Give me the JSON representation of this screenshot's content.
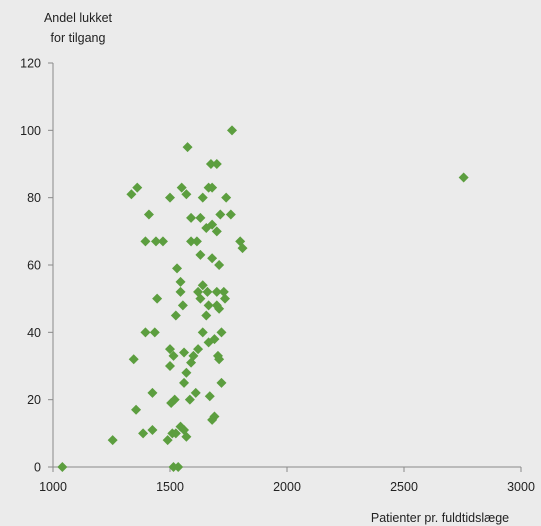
{
  "chart_data": {
    "type": "scatter",
    "ylabel": "Andel lukket\nfor tilgang",
    "xlabel": "Patienter pr. fuldtidslæge",
    "xlim": [
      1000,
      3000
    ],
    "ylim": [
      0,
      120
    ],
    "xticks": [
      1000,
      1500,
      2000,
      2500,
      3000
    ],
    "yticks": [
      0,
      20,
      40,
      60,
      80,
      100,
      120
    ],
    "grid": false,
    "marker": "diamond",
    "marker_color": "#5c9e3f",
    "points": [
      [
        1040,
        0
      ],
      [
        1515,
        0
      ],
      [
        1535,
        0
      ],
      [
        1255,
        8
      ],
      [
        1490,
        8
      ],
      [
        1385,
        10
      ],
      [
        1425,
        11
      ],
      [
        1510,
        10
      ],
      [
        1525,
        10
      ],
      [
        1560,
        11
      ],
      [
        1570,
        9
      ],
      [
        1545,
        12
      ],
      [
        1355,
        17
      ],
      [
        1505,
        19
      ],
      [
        1520,
        20
      ],
      [
        1585,
        20
      ],
      [
        1610,
        22
      ],
      [
        1425,
        22
      ],
      [
        1670,
        21
      ],
      [
        1690,
        15
      ],
      [
        1680,
        14
      ],
      [
        1720,
        25
      ],
      [
        1560,
        25
      ],
      [
        1570,
        28
      ],
      [
        1500,
        30
      ],
      [
        1515,
        33
      ],
      [
        1345,
        32
      ],
      [
        1590,
        31
      ],
      [
        1600,
        33
      ],
      [
        1620,
        35
      ],
      [
        1500,
        35
      ],
      [
        1560,
        34
      ],
      [
        1665,
        37
      ],
      [
        1690,
        38
      ],
      [
        1705,
        33
      ],
      [
        1710,
        32
      ],
      [
        1640,
        40
      ],
      [
        1720,
        40
      ],
      [
        1395,
        40
      ],
      [
        1435,
        40
      ],
      [
        1525,
        45
      ],
      [
        1655,
        45
      ],
      [
        1445,
        50
      ],
      [
        1555,
        48
      ],
      [
        1630,
        50
      ],
      [
        1665,
        48
      ],
      [
        1700,
        48
      ],
      [
        1710,
        47
      ],
      [
        1735,
        50
      ],
      [
        1545,
        52
      ],
      [
        1620,
        52
      ],
      [
        1660,
        52
      ],
      [
        1700,
        52
      ],
      [
        1730,
        52
      ],
      [
        1545,
        55
      ],
      [
        1640,
        54
      ],
      [
        1530,
        59
      ],
      [
        1680,
        62
      ],
      [
        1710,
        60
      ],
      [
        1630,
        63
      ],
      [
        1395,
        67
      ],
      [
        1440,
        67
      ],
      [
        1470,
        67
      ],
      [
        1590,
        67
      ],
      [
        1615,
        67
      ],
      [
        1655,
        71
      ],
      [
        1680,
        72
      ],
      [
        1700,
        70
      ],
      [
        1800,
        67
      ],
      [
        1810,
        65
      ],
      [
        1410,
        75
      ],
      [
        1590,
        74
      ],
      [
        1630,
        74
      ],
      [
        1715,
        75
      ],
      [
        1760,
        75
      ],
      [
        1335,
        81
      ],
      [
        1360,
        83
      ],
      [
        1500,
        80
      ],
      [
        1550,
        83
      ],
      [
        1570,
        81
      ],
      [
        1640,
        80
      ],
      [
        1665,
        83
      ],
      [
        1680,
        83
      ],
      [
        1740,
        80
      ],
      [
        1675,
        90
      ],
      [
        1700,
        90
      ],
      [
        1575,
        95
      ],
      [
        1765,
        100
      ],
      [
        2755,
        86
      ]
    ]
  }
}
